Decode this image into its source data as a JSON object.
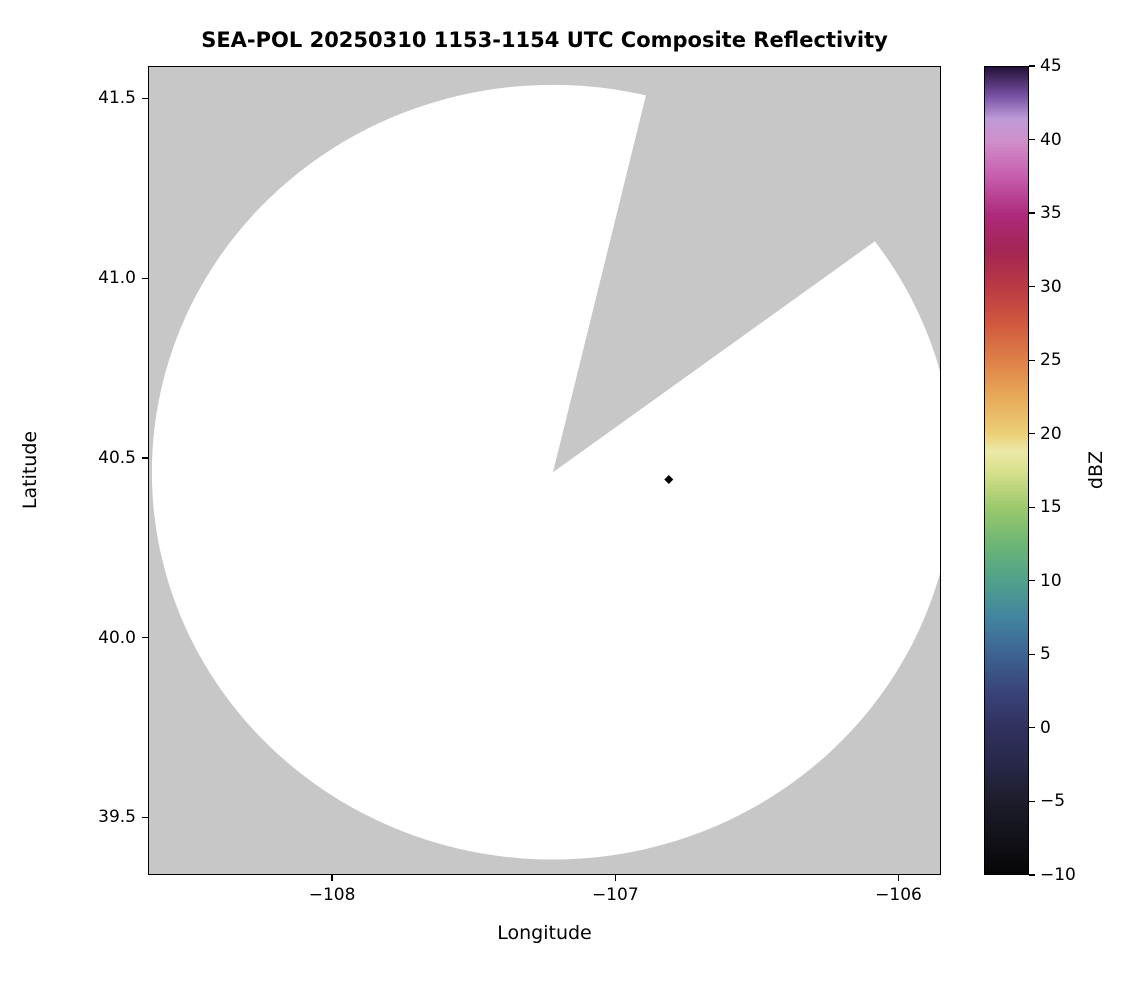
{
  "figure": {
    "background_color": "#ffffff"
  },
  "chart_data": {
    "type": "radar_coverage_map",
    "title": "SEA-POL 20250310 1153-1154 UTC Composite Reflectivity",
    "xlabel": "Longitude",
    "ylabel": "Latitude",
    "xlim": [
      -108.65,
      -105.85
    ],
    "ylim": [
      39.34,
      41.59
    ],
    "grid": false,
    "plot_background_color": "#c7c7c7",
    "xticks": [
      {
        "value": -108,
        "label": "−108"
      },
      {
        "value": -107,
        "label": "−107"
      },
      {
        "value": -106,
        "label": "−106"
      }
    ],
    "yticks": [
      {
        "value": 39.5,
        "label": "39.5"
      },
      {
        "value": 40.0,
        "label": "40.0"
      },
      {
        "value": 40.5,
        "label": "40.5"
      },
      {
        "value": 41.0,
        "label": "41.0"
      },
      {
        "value": 41.5,
        "label": "41.5"
      }
    ],
    "coverage": {
      "center_lon": -107.22,
      "center_lat": 40.46,
      "radius_deg_lat": 1.08,
      "blocked_sector_azimuth_deg": [
        13.4,
        53.4
      ],
      "fill_color": "#ffffff"
    },
    "marker": {
      "lon": -106.81,
      "lat": 40.44,
      "shape": "diamond",
      "color": "#000000"
    },
    "colorbar": {
      "label": "dBZ",
      "min": -10,
      "max": 45,
      "ticks": [
        {
          "value": 45,
          "label": "45"
        },
        {
          "value": 40,
          "label": "40"
        },
        {
          "value": 35,
          "label": "35"
        },
        {
          "value": 30,
          "label": "30"
        },
        {
          "value": 25,
          "label": "25"
        },
        {
          "value": 20,
          "label": "20"
        },
        {
          "value": 15,
          "label": "15"
        },
        {
          "value": 10,
          "label": "10"
        },
        {
          "value": 5,
          "label": "5"
        },
        {
          "value": 0,
          "label": "0"
        },
        {
          "value": -5,
          "label": "−5"
        },
        {
          "value": -10,
          "label": "−10"
        }
      ],
      "gradient_stops": [
        {
          "value": -10,
          "color": "#060609"
        },
        {
          "value": -7.5,
          "color": "#121219"
        },
        {
          "value": -5,
          "color": "#1d1d2c"
        },
        {
          "value": -2.5,
          "color": "#27284a"
        },
        {
          "value": 0,
          "color": "#31315e"
        },
        {
          "value": 2.5,
          "color": "#3a447a"
        },
        {
          "value": 5,
          "color": "#3d6392"
        },
        {
          "value": 7.5,
          "color": "#4384a0"
        },
        {
          "value": 10,
          "color": "#4fa18b"
        },
        {
          "value": 12.5,
          "color": "#6db674"
        },
        {
          "value": 15,
          "color": "#9dc96c"
        },
        {
          "value": 17.5,
          "color": "#d9e18e"
        },
        {
          "value": 18.8,
          "color": "#ece9a8"
        },
        {
          "value": 20,
          "color": "#ecd078"
        },
        {
          "value": 22.5,
          "color": "#e7a958"
        },
        {
          "value": 25,
          "color": "#de8048"
        },
        {
          "value": 27.5,
          "color": "#d0583e"
        },
        {
          "value": 30,
          "color": "#ba3a44"
        },
        {
          "value": 32.5,
          "color": "#a32555"
        },
        {
          "value": 35,
          "color": "#ae2b7d"
        },
        {
          "value": 37.5,
          "color": "#c75dad"
        },
        {
          "value": 40,
          "color": "#cf90ca"
        },
        {
          "value": 41.5,
          "color": "#bd9bd7"
        },
        {
          "value": 43,
          "color": "#7951a5"
        },
        {
          "value": 45,
          "color": "#241038"
        }
      ]
    }
  }
}
